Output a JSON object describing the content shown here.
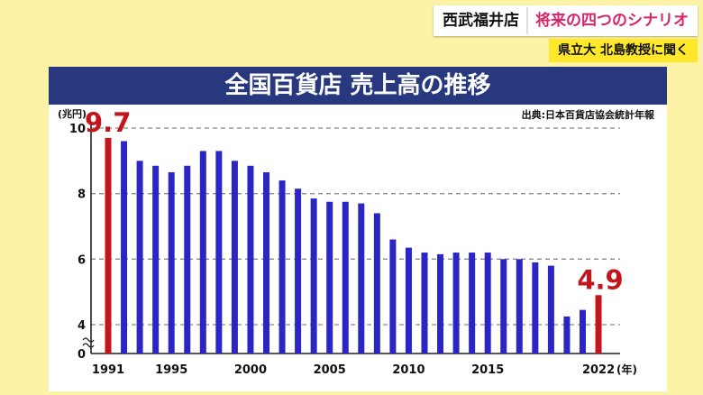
{
  "caption": {
    "topic": "西武福井店",
    "title": "将来の四つのシナリオ",
    "sub": "県立大 北島教授に聞く"
  },
  "board": {
    "title": "全国百貨店 売上高の推移",
    "source": "出典:日本百貨店協会統計年報"
  },
  "chart_data": {
    "type": "bar",
    "title": "全国百貨店 売上高の推移",
    "ylabel": "(兆円)",
    "xlabel": "(年)",
    "ylim": [
      0,
      10
    ],
    "axis_break": true,
    "yticks": [
      0,
      4,
      6,
      8,
      10
    ],
    "xticks": [
      "1991",
      "1995",
      "2000",
      "2005",
      "2010",
      "2015",
      "2022"
    ],
    "grid": true,
    "colors": {
      "bar": "#2a25c4",
      "highlight": "#c3161c",
      "label": "#c3161c"
    },
    "categories": [
      "1991",
      "1992",
      "1993",
      "1994",
      "1995",
      "1996",
      "1997",
      "1998",
      "1999",
      "2000",
      "2001",
      "2002",
      "2003",
      "2004",
      "2005",
      "2006",
      "2007",
      "2008",
      "2009",
      "2010",
      "2011",
      "2012",
      "2013",
      "2014",
      "2015",
      "2016",
      "2017",
      "2018",
      "2019",
      "2020",
      "2021",
      "2022"
    ],
    "values": [
      9.7,
      9.6,
      9.0,
      8.85,
      8.65,
      8.85,
      9.3,
      9.3,
      9.0,
      8.85,
      8.65,
      8.4,
      8.15,
      7.85,
      7.75,
      7.75,
      7.7,
      7.4,
      6.6,
      6.35,
      6.2,
      6.15,
      6.2,
      6.2,
      6.2,
      6.0,
      6.0,
      5.9,
      5.8,
      4.25,
      4.45,
      4.9
    ],
    "highlight": [
      "1991",
      "2022"
    ],
    "data_labels": [
      {
        "category": "1991",
        "text": "9.7"
      },
      {
        "category": "2022",
        "text": "4.9"
      }
    ]
  }
}
